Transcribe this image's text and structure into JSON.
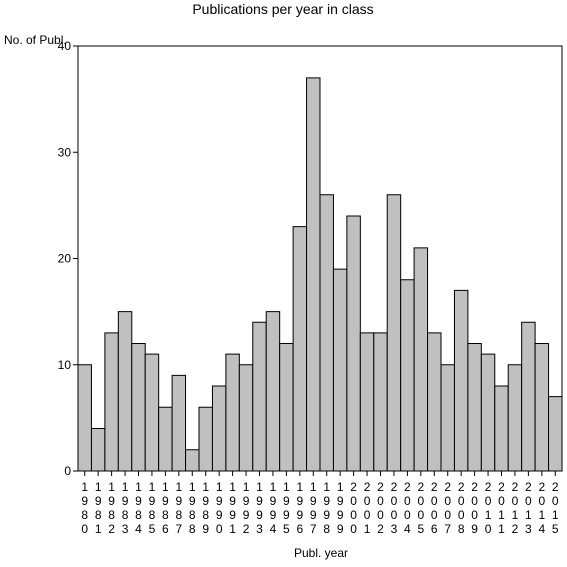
{
  "chart_data": {
    "type": "bar",
    "title": "Publications per year in class",
    "xlabel": "Publ. year",
    "ylabel": "No. of Publ.",
    "ylim": [
      0,
      40
    ],
    "yticks": [
      0,
      10,
      20,
      30,
      40
    ],
    "grid": false,
    "legend": "none",
    "bar_color": "#c0c0c0",
    "edge_color": "#000000",
    "categories": [
      "1980",
      "1981",
      "1982",
      "1983",
      "1984",
      "1985",
      "1986",
      "1987",
      "1988",
      "1989",
      "1990",
      "1991",
      "1992",
      "1993",
      "1994",
      "1995",
      "1996",
      "1997",
      "1998",
      "1999",
      "2000",
      "2001",
      "2002",
      "2003",
      "2004",
      "2005",
      "2006",
      "2007",
      "2008",
      "2009",
      "2010",
      "2011",
      "2012",
      "2013",
      "2014",
      "2015"
    ],
    "values": [
      10,
      4,
      13,
      15,
      12,
      11,
      6,
      9,
      2,
      6,
      8,
      11,
      10,
      14,
      15,
      12,
      23,
      37,
      26,
      19,
      24,
      13,
      13,
      26,
      18,
      21,
      13,
      10,
      17,
      12,
      11,
      8,
      10,
      14,
      12,
      7
    ]
  }
}
